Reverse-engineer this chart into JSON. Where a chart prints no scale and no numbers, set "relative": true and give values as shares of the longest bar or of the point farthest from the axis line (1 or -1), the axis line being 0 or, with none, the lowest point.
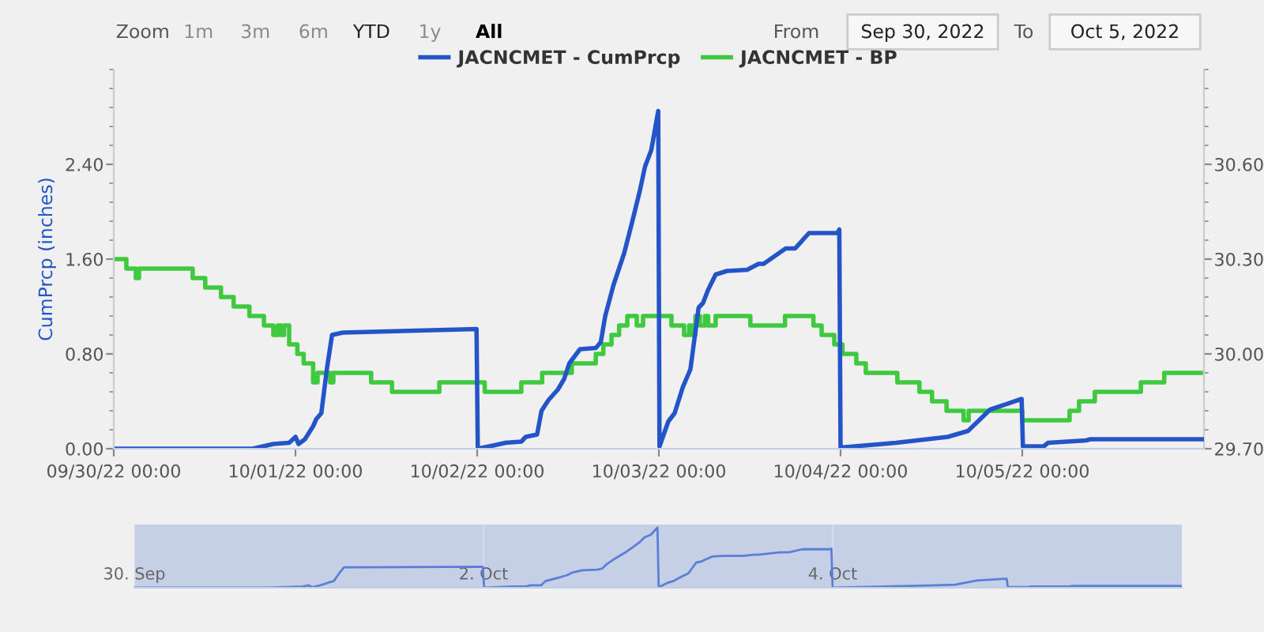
{
  "chart_data": [
    {
      "type": "line",
      "ylabel": "CumPrcp (inches)",
      "legend": "top",
      "annotations": [
        "Zoom",
        "1m",
        "3m",
        "6m",
        "YTD",
        "1y",
        "All",
        "From",
        "Sep 30, 2022",
        "To",
        "Oct 5, 2022"
      ],
      "xlim": [
        "2022-09-30T00:00",
        "2022-10-06T00:00"
      ],
      "xticks": [
        {
          "value": "2022-09-30T00:00",
          "label": "09/30/22 00:00"
        },
        {
          "value": "2022-10-01T00:00",
          "label": "10/01/22 00:00"
        },
        {
          "value": "2022-10-02T00:00",
          "label": "10/02/22 00:00"
        },
        {
          "value": "2022-10-03T00:00",
          "label": "10/03/22 00:00"
        },
        {
          "value": "2022-10-04T00:00",
          "label": "10/04/22 00:00"
        },
        {
          "value": "2022-10-05T00:00",
          "label": "10/05/22 00:00"
        }
      ],
      "ylim": [
        0,
        3.2
      ],
      "yticks": [
        {
          "value": 0,
          "label": "0.00"
        },
        {
          "value": 0.8,
          "label": "0.80"
        },
        {
          "value": 1.6,
          "label": "1.60"
        },
        {
          "value": 2.4,
          "label": "2.40"
        }
      ],
      "y2lim": [
        29.7,
        30.9
      ],
      "y2ticks": [
        {
          "value": 29.7,
          "label": "29.70"
        },
        {
          "value": 30.0,
          "label": "30.00"
        },
        {
          "value": 30.3,
          "label": "30.30"
        },
        {
          "value": 30.6,
          "label": "30.60"
        }
      ],
      "series": [
        {
          "name": "JACNCMET - CumPrcp",
          "color": "#2455c8",
          "x": [
            "2022-09-30T00:00",
            "2022-09-30T18:20",
            "2022-09-30T21:05",
            "2022-09-30T23:10",
            "2022-10-01T00:00",
            "2022-10-01T00:25",
            "2022-10-01T01:15",
            "2022-10-01T02:20",
            "2022-10-01T02:45",
            "2022-10-01T03:25",
            "2022-10-01T04:10",
            "2022-10-01T04:50",
            "2022-10-01T06:15",
            "2022-10-01T23:55",
            "2022-10-02T00:05",
            "2022-10-02T02:20",
            "2022-10-02T03:45",
            "2022-10-02T05:50",
            "2022-10-02T06:25",
            "2022-10-02T07:55",
            "2022-10-02T08:30",
            "2022-10-02T09:25",
            "2022-10-02T10:40",
            "2022-10-02T11:30",
            "2022-10-02T12:10",
            "2022-10-02T13:35",
            "2022-10-02T15:40",
            "2022-10-02T16:20",
            "2022-10-02T16:55",
            "2022-10-02T18:00",
            "2022-10-02T19:25",
            "2022-10-02T20:30",
            "2022-10-02T21:30",
            "2022-10-02T22:10",
            "2022-10-02T23:00",
            "2022-10-02T23:55",
            "2022-10-03T00:05",
            "2022-10-03T01:15",
            "2022-10-03T02:05",
            "2022-10-03T03:10",
            "2022-10-03T04:10",
            "2022-10-03T05:15",
            "2022-10-03T05:50",
            "2022-10-03T06:30",
            "2022-10-03T07:30",
            "2022-10-03T09:00",
            "2022-10-03T11:40",
            "2022-10-03T13:10",
            "2022-10-03T13:50",
            "2022-10-03T16:45",
            "2022-10-03T18:00",
            "2022-10-03T19:50",
            "2022-10-03T23:35",
            "2022-10-03T23:50",
            "2022-10-04T00:00",
            "2022-10-04T07:20",
            "2022-10-04T14:10",
            "2022-10-04T16:50",
            "2022-10-04T19:45",
            "2022-10-04T23:55",
            "2022-10-05T00:05",
            "2022-10-05T02:50",
            "2022-10-05T03:25",
            "2022-10-05T08:25",
            "2022-10-05T09:00",
            "2022-10-06T00:00"
          ],
          "values": [
            0,
            0,
            0.04,
            0.05,
            0.1,
            0.04,
            0.08,
            0.19,
            0.25,
            0.3,
            0.68,
            0.96,
            0.98,
            1.01,
            0,
            0.03,
            0.05,
            0.06,
            0.1,
            0.12,
            0.32,
            0.41,
            0.5,
            0.59,
            0.72,
            0.84,
            0.85,
            0.9,
            1.12,
            1.38,
            1.65,
            1.92,
            2.18,
            2.38,
            2.52,
            2.85,
            0.02,
            0.23,
            0.3,
            0.52,
            0.67,
            1.19,
            1.23,
            1.34,
            1.47,
            1.5,
            1.51,
            1.56,
            1.56,
            1.69,
            1.69,
            1.82,
            1.82,
            1.85,
            0.01,
            0.05,
            0.1,
            0.15,
            0.33,
            0.42,
            0.02,
            0.02,
            0.05,
            0.07,
            0.08,
            0.08
          ]
        },
        {
          "name": "JACNCMET - BP",
          "type": "step",
          "axis": "y2",
          "color": "#3ec93e",
          "x": [
            "2022-09-30T00:00",
            "2022-09-30T01:40",
            "2022-09-30T02:55",
            "2022-09-30T03:20",
            "2022-09-30T10:25",
            "2022-09-30T12:05",
            "2022-09-30T14:10",
            "2022-09-30T15:50",
            "2022-09-30T17:55",
            "2022-09-30T19:50",
            "2022-09-30T21:05",
            "2022-09-30T21:40",
            "2022-09-30T22:05",
            "2022-09-30T22:30",
            "2022-09-30T23:10",
            "2022-10-01T00:15",
            "2022-10-01T01:05",
            "2022-10-01T02:20",
            "2022-10-01T02:55",
            "2022-10-01T04:35",
            "2022-10-01T05:00",
            "2022-10-01T10:00",
            "2022-10-01T12:45",
            "2022-10-01T19:00",
            "2022-10-02T01:00",
            "2022-10-02T05:50",
            "2022-10-02T08:35",
            "2022-10-02T12:30",
            "2022-10-02T15:40",
            "2022-10-02T16:40",
            "2022-10-02T17:45",
            "2022-10-02T18:45",
            "2022-10-02T19:50",
            "2022-10-02T21:05",
            "2022-10-02T21:55",
            "2022-10-03T01:40",
            "2022-10-03T03:20",
            "2022-10-03T04:00",
            "2022-10-03T04:25",
            "2022-10-03T04:50",
            "2022-10-03T05:25",
            "2022-10-03T06:05",
            "2022-10-03T06:30",
            "2022-10-03T07:30",
            "2022-10-03T12:05",
            "2022-10-03T16:40",
            "2022-10-03T20:25",
            "2022-10-03T21:30",
            "2022-10-03T23:10",
            "2022-10-04T00:15",
            "2022-10-04T02:05",
            "2022-10-04T03:20",
            "2022-10-04T07:30",
            "2022-10-04T10:25",
            "2022-10-04T12:05",
            "2022-10-04T14:00",
            "2022-10-04T16:15",
            "2022-10-04T16:55",
            "2022-10-05T00:00",
            "2022-10-05T06:15",
            "2022-10-05T07:30",
            "2022-10-05T09:35",
            "2022-10-05T15:40",
            "2022-10-05T18:45",
            "2022-10-06T00:00"
          ],
          "values": [
            30.3,
            30.27,
            30.24,
            30.27,
            30.24,
            30.21,
            30.18,
            30.15,
            30.12,
            30.09,
            30.06,
            30.09,
            30.06,
            30.09,
            30.03,
            30.0,
            29.97,
            29.91,
            29.94,
            29.91,
            29.94,
            29.91,
            29.88,
            29.91,
            29.88,
            29.91,
            29.94,
            29.97,
            30.0,
            30.03,
            30.06,
            30.09,
            30.12,
            30.09,
            30.12,
            30.09,
            30.06,
            30.09,
            30.06,
            30.12,
            30.09,
            30.12,
            30.09,
            30.12,
            30.09,
            30.12,
            30.09,
            30.06,
            30.03,
            30.0,
            29.97,
            29.94,
            29.91,
            29.88,
            29.85,
            29.82,
            29.79,
            29.82,
            29.79,
            29.82,
            29.85,
            29.88,
            29.91,
            29.94,
            29.94
          ]
        }
      ]
    },
    {
      "type": "line",
      "relative": true,
      "tick_labels": "x",
      "xlim": [
        "2022-09-30T00:00",
        "2022-10-06T00:00"
      ],
      "xticks": [
        {
          "value": "2022-09-30T00:00",
          "label": "30. Sep"
        },
        {
          "value": "2022-10-02T00:00",
          "label": "2. Oct"
        },
        {
          "value": "2022-10-04T00:00",
          "label": "4. Oct"
        }
      ],
      "series": [
        {
          "color": "#5b7fd6",
          "x": [
            "2022-09-30T00:00",
            "2022-09-30T18:20",
            "2022-09-30T21:05",
            "2022-09-30T23:10",
            "2022-10-01T00:00",
            "2022-10-01T00:25",
            "2022-10-01T01:15",
            "2022-10-01T02:20",
            "2022-10-01T02:45",
            "2022-10-01T03:25",
            "2022-10-01T04:10",
            "2022-10-01T04:50",
            "2022-10-01T06:15",
            "2022-10-01T23:55",
            "2022-10-02T00:05",
            "2022-10-02T02:20",
            "2022-10-02T03:45",
            "2022-10-02T05:50",
            "2022-10-02T06:25",
            "2022-10-02T07:55",
            "2022-10-02T08:30",
            "2022-10-02T09:25",
            "2022-10-02T10:40",
            "2022-10-02T11:30",
            "2022-10-02T12:10",
            "2022-10-02T13:35",
            "2022-10-02T15:40",
            "2022-10-02T16:20",
            "2022-10-02T16:55",
            "2022-10-02T18:00",
            "2022-10-02T19:25",
            "2022-10-02T20:30",
            "2022-10-02T21:30",
            "2022-10-02T22:10",
            "2022-10-02T23:00",
            "2022-10-02T23:55",
            "2022-10-03T00:05",
            "2022-10-03T01:15",
            "2022-10-03T02:05",
            "2022-10-03T03:10",
            "2022-10-03T04:10",
            "2022-10-03T05:15",
            "2022-10-03T05:50",
            "2022-10-03T06:30",
            "2022-10-03T07:30",
            "2022-10-03T09:00",
            "2022-10-03T11:40",
            "2022-10-03T13:10",
            "2022-10-03T13:50",
            "2022-10-03T16:45",
            "2022-10-03T18:00",
            "2022-10-03T19:50",
            "2022-10-03T23:35",
            "2022-10-03T23:50",
            "2022-10-04T00:00",
            "2022-10-04T07:20",
            "2022-10-04T14:10",
            "2022-10-04T16:50",
            "2022-10-04T19:45",
            "2022-10-04T23:55",
            "2022-10-05T00:05",
            "2022-10-05T02:50",
            "2022-10-05T03:25",
            "2022-10-05T08:25",
            "2022-10-05T09:00",
            "2022-10-06T00:00"
          ],
          "values": [
            0,
            0,
            0.01,
            0.02,
            0.04,
            0.01,
            0.03,
            0.07,
            0.09,
            0.11,
            0.24,
            0.34,
            0.34,
            0.35,
            0,
            0.01,
            0.02,
            0.02,
            0.04,
            0.04,
            0.11,
            0.14,
            0.18,
            0.21,
            0.25,
            0.29,
            0.3,
            0.32,
            0.39,
            0.48,
            0.58,
            0.67,
            0.76,
            0.84,
            0.88,
            1,
            0.01,
            0.08,
            0.11,
            0.18,
            0.24,
            0.42,
            0.43,
            0.47,
            0.52,
            0.53,
            0.53,
            0.55,
            0.55,
            0.59,
            0.59,
            0.64,
            0.64,
            0.65,
            0,
            0.02,
            0.04,
            0.05,
            0.12,
            0.15,
            0.01,
            0.01,
            0.02,
            0.02,
            0.03,
            0.03
          ]
        }
      ]
    }
  ]
}
